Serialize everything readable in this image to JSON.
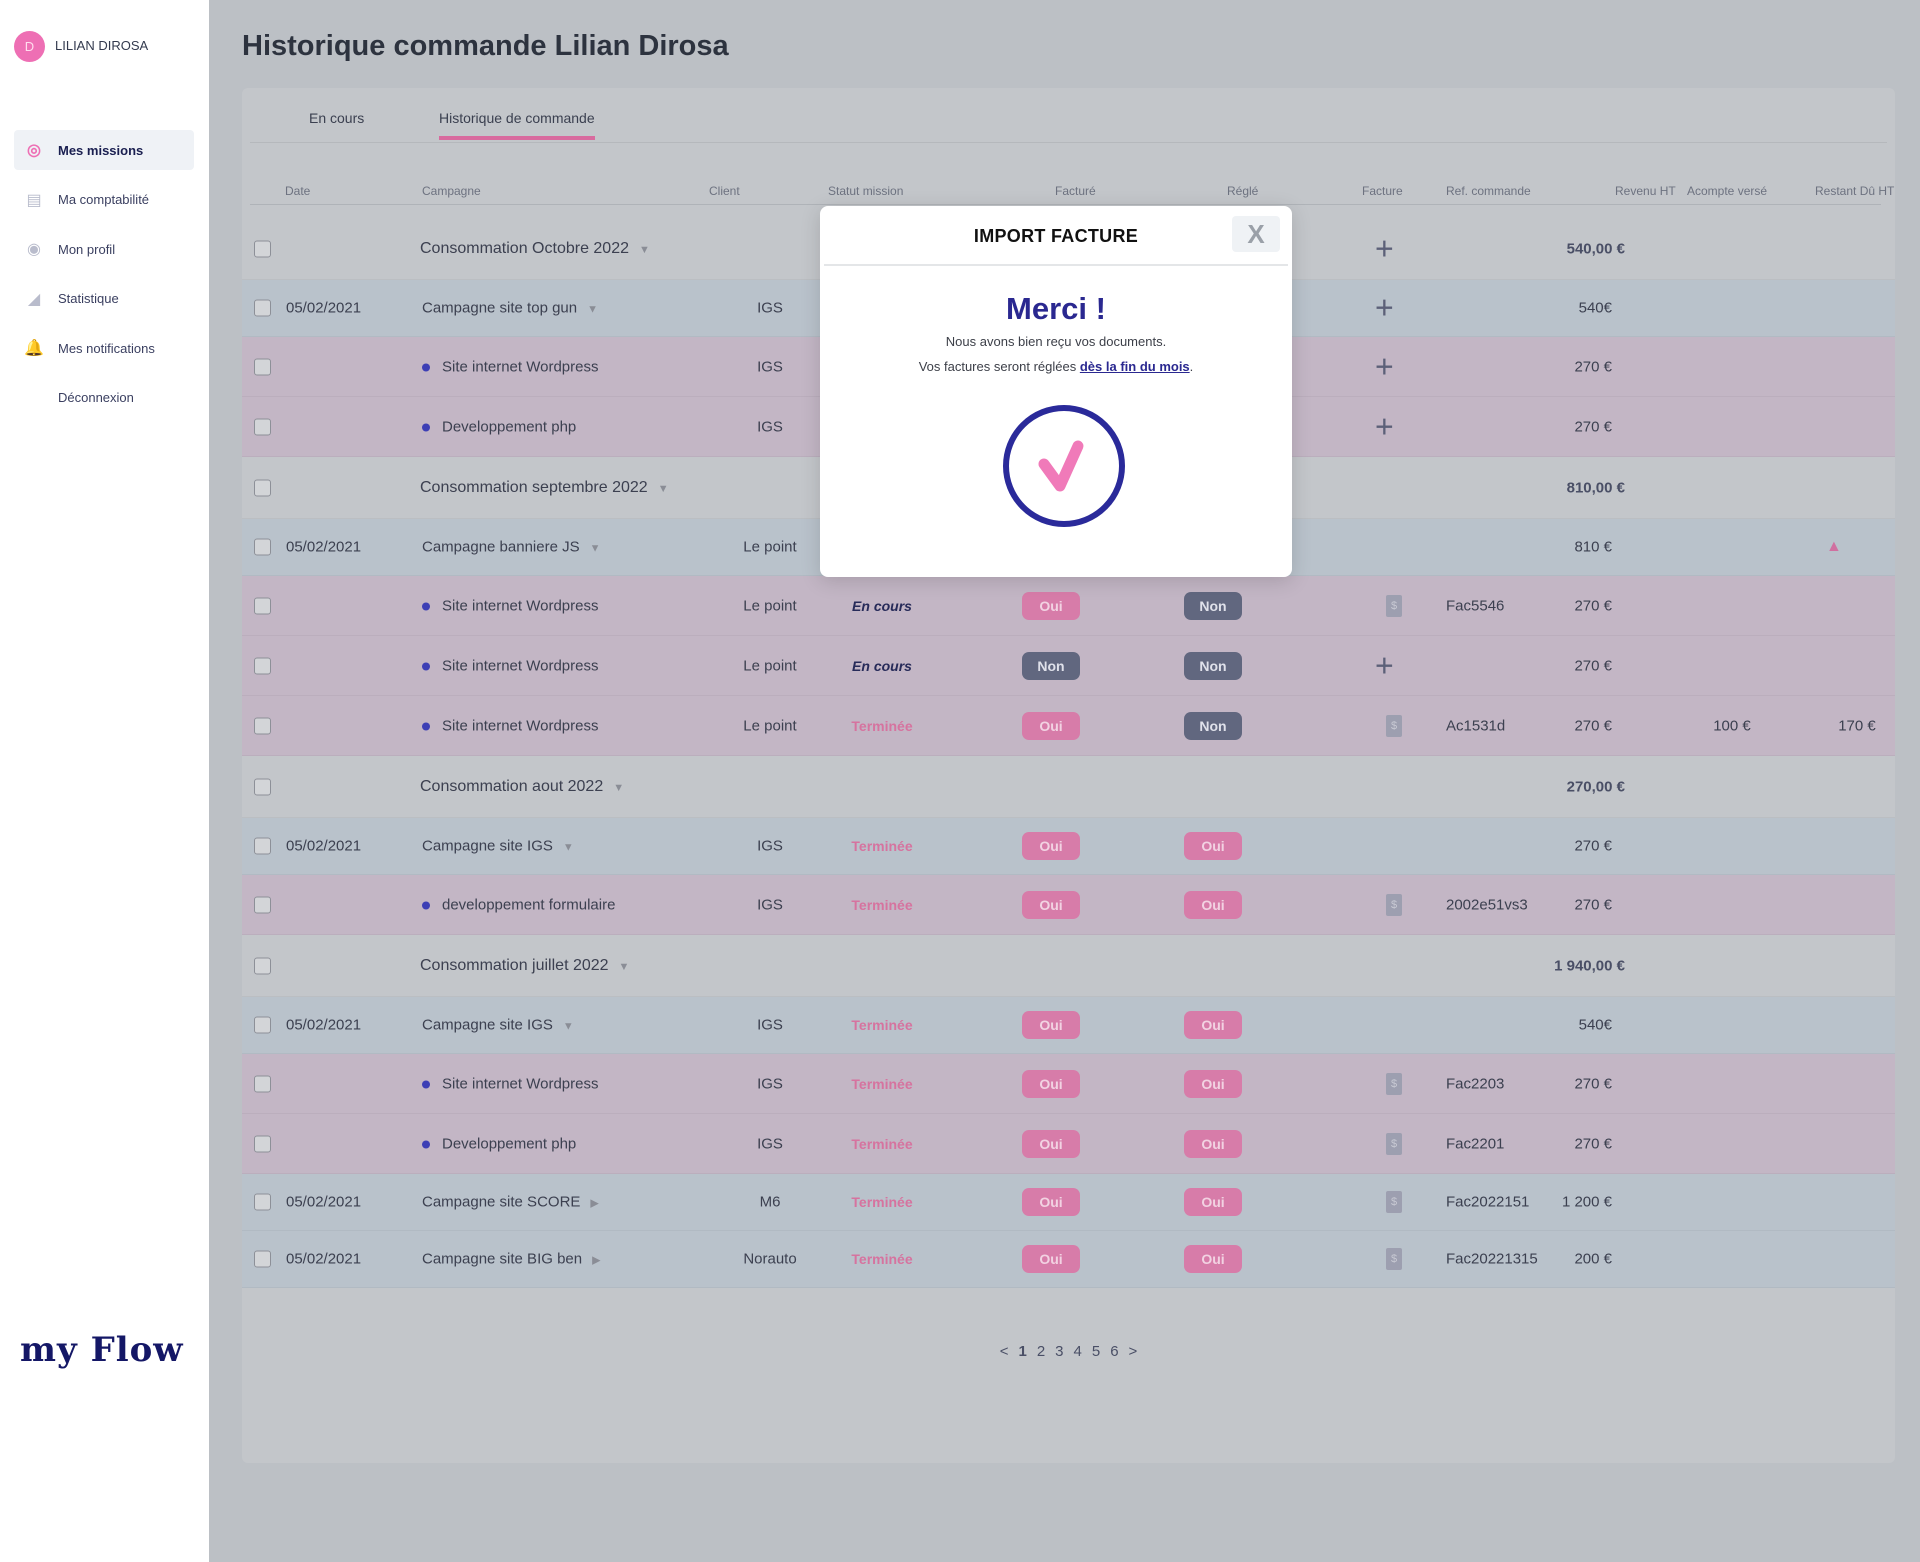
{
  "user": {
    "initial": "D",
    "name": "LILIAN DIROSA"
  },
  "sidebar": {
    "items": [
      {
        "label": "Mes missions",
        "icon": "target-icon"
      },
      {
        "label": "Ma comptabilité",
        "icon": "clipboard-icon"
      },
      {
        "label": "Mon profil",
        "icon": "user-icon"
      },
      {
        "label": "Statistique",
        "icon": "chart-icon"
      },
      {
        "label": "Mes notifications",
        "icon": "bell-icon"
      },
      {
        "label": "Déconnexion",
        "icon": ""
      }
    ],
    "logo": "my Flow"
  },
  "page": {
    "title": "Historique commande Lilian Dirosa"
  },
  "tabs": [
    "En cours",
    "Historique de commande"
  ],
  "columns": [
    "Date",
    "Campagne",
    "Client",
    "Statut mission",
    "Facturé",
    "Réglé",
    "Facture",
    "Ref. commande",
    "Revenu HT",
    "Acompte versé",
    "Restant Dû HT"
  ],
  "rows": [
    {
      "type": "group",
      "campaign": "Consommation Octobre 2022",
      "invoice": "plus",
      "revenu": "540,00 €"
    },
    {
      "type": "campaign",
      "date": "05/02/2021",
      "campaign": "Campagne site top gun",
      "client": "IGS",
      "invoice": "plus",
      "revenu": "540€"
    },
    {
      "type": "sub",
      "campaign": "Site internet Wordpress",
      "client": "IGS",
      "invoice": "plus",
      "revenu": "270 €"
    },
    {
      "type": "sub",
      "campaign": "Developpement php",
      "client": "IGS",
      "invoice": "plus",
      "revenu": "270 €"
    },
    {
      "type": "group",
      "campaign": "Consommation septembre 2022",
      "revenu": "810,00 €"
    },
    {
      "type": "campaign",
      "date": "05/02/2021",
      "campaign": "Campagne banniere JS",
      "client": "Le point",
      "revenu": "810 €",
      "alert": true
    },
    {
      "type": "sub",
      "campaign": "Site internet Wordpress",
      "client": "Le point",
      "status": "En cours",
      "facture": "Oui",
      "regle": "Non",
      "invoice": "file",
      "ref": "Fac5546",
      "revenu": "270 €"
    },
    {
      "type": "sub",
      "campaign": "Site internet Wordpress",
      "client": "Le point",
      "status": "En cours",
      "facture": "Non",
      "regle": "Non",
      "invoice": "plus",
      "revenu": "270 €"
    },
    {
      "type": "sub",
      "campaign": "Site internet Wordpress",
      "client": "Le point",
      "status": "Terminée",
      "facture": "Oui",
      "regle": "Non",
      "invoice": "file",
      "ref": "Ac1531d",
      "revenu": "270 €",
      "acompte": "100 €",
      "restant": "170 €"
    },
    {
      "type": "group",
      "campaign": "Consommation aout 2022",
      "revenu": "270,00 €"
    },
    {
      "type": "campaign",
      "date": "05/02/2021",
      "campaign": "Campagne site IGS",
      "client": "IGS",
      "status": "Terminée",
      "facture": "Oui",
      "regle": "Oui",
      "revenu": "270 €"
    },
    {
      "type": "sub",
      "campaign": "developpement formulaire",
      "client": "IGS",
      "status": "Terminée",
      "facture": "Oui",
      "regle": "Oui",
      "invoice": "file",
      "ref": "2002e51vs3",
      "revenu": "270 €"
    },
    {
      "type": "group",
      "campaign": "Consommation juillet 2022",
      "revenu": "1 940,00 €"
    },
    {
      "type": "campaign",
      "date": "05/02/2021",
      "campaign": "Campagne site IGS",
      "client": "IGS",
      "status": "Terminée",
      "facture": "Oui",
      "regle": "Oui",
      "revenu": "540€"
    },
    {
      "type": "sub",
      "campaign": "Site internet Wordpress",
      "client": "IGS",
      "status": "Terminée",
      "facture": "Oui",
      "regle": "Oui",
      "invoice": "file",
      "ref": "Fac2203",
      "revenu": "270 €"
    },
    {
      "type": "sub",
      "campaign": "Developpement php",
      "client": "IGS",
      "status": "Terminée",
      "facture": "Oui",
      "regle": "Oui",
      "invoice": "file",
      "ref": "Fac2201",
      "revenu": "270 €"
    },
    {
      "type": "campaign",
      "collapsed": true,
      "date": "05/02/2021",
      "campaign": "Campagne site SCORE",
      "client": "M6",
      "status": "Terminée",
      "facture": "Oui",
      "regle": "Oui",
      "invoice": "file",
      "ref": "Fac2022151",
      "revenu": "1 200 €"
    },
    {
      "type": "campaign",
      "collapsed": true,
      "date": "05/02/2021",
      "campaign": "Campagne site BIG ben",
      "client": "Norauto",
      "status": "Terminée",
      "facture": "Oui",
      "regle": "Oui",
      "invoice": "file",
      "ref": "Fac20221315",
      "revenu": "200 €"
    }
  ],
  "pagination": {
    "prev": "<",
    "pages": [
      "1",
      "2",
      "3",
      "4",
      "5",
      "6"
    ],
    "current": "1",
    "next": ">"
  },
  "modal": {
    "title": "IMPORT FACTURE",
    "close": "X",
    "heading": "Merci !",
    "line1": "Nous avons bien reçu vos documents.",
    "line2": "Vos factures seront réglées ",
    "link": "dès la fin du mois",
    "line2_end": "."
  },
  "colors": {
    "accent": "#d86a9e",
    "primary": "#2a2890",
    "non": "#61677f"
  }
}
